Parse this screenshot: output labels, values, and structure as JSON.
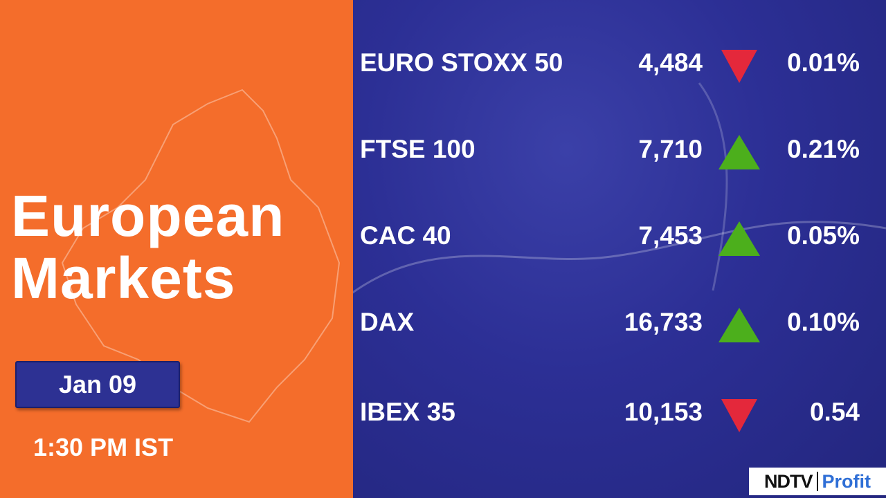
{
  "header": {
    "title": [
      "European",
      "Markets"
    ],
    "date": "Jan 09",
    "time": "1:30 PM IST"
  },
  "table": {
    "rows": [
      {
        "name": "EURO STOXX 50",
        "value": "4,484",
        "direction": "down",
        "change": "0.01%"
      },
      {
        "name": "FTSE 100",
        "value": "7,710",
        "direction": "up",
        "change": "0.21%"
      },
      {
        "name": "CAC 40",
        "value": "7,453",
        "direction": "up",
        "change": "0.05%"
      },
      {
        "name": "DAX",
        "value": "16,733",
        "direction": "up",
        "change": "0.10%"
      },
      {
        "name": "IBEX 35",
        "value": "10,153",
        "direction": "down",
        "change": "0.54"
      }
    ]
  },
  "logo": {
    "brand": "NDTV",
    "product": "Profit"
  }
}
